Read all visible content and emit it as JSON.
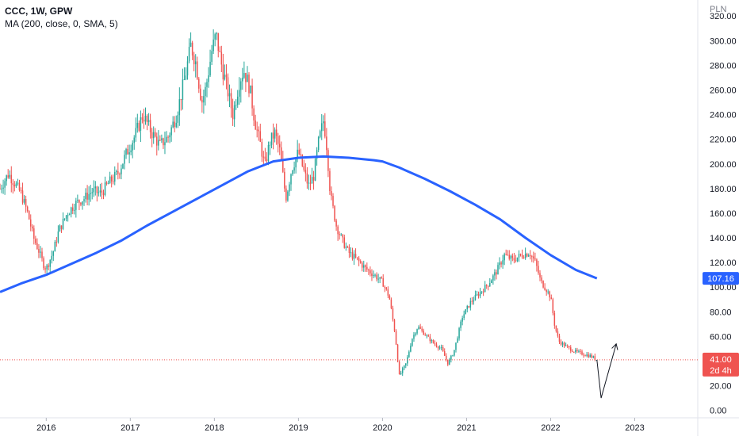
{
  "legend": {
    "symbol_line": "CCC, 1W, GPW",
    "indicator_line": "MA (200, close, 0, SMA, 5)"
  },
  "chart_data": {
    "type": "candlestick",
    "currency_label": "PLN",
    "y_ticks": [
      "0.00",
      "20.00",
      "40.00",
      "60.00",
      "80.00",
      "100.00",
      "120.00",
      "140.00",
      "160.00",
      "180.00",
      "200.00",
      "220.00",
      "240.00",
      "260.00",
      "280.00",
      "300.00",
      "320.00"
    ],
    "y_tick_values": [
      0,
      20,
      40,
      60,
      80,
      100,
      120,
      140,
      160,
      180,
      200,
      220,
      240,
      260,
      280,
      300,
      320
    ],
    "x_ticks": [
      "2016",
      "2017",
      "2018",
      "2019",
      "2020",
      "2021",
      "2022",
      "2023"
    ],
    "x_tick_values": [
      2016,
      2017,
      2018,
      2019,
      2020,
      2021,
      2022,
      2023
    ],
    "ylim": [
      -6,
      333
    ],
    "xlim": [
      2015.45,
      2023.75
    ],
    "price_path": [
      [
        2015.45,
        180
      ],
      [
        2015.55,
        192
      ],
      [
        2015.62,
        185
      ],
      [
        2015.7,
        176
      ],
      [
        2015.78,
        160
      ],
      [
        2015.85,
        140
      ],
      [
        2015.92,
        128
      ],
      [
        2015.97,
        118
      ],
      [
        2016.0,
        115
      ],
      [
        2016.08,
        128
      ],
      [
        2016.15,
        146
      ],
      [
        2016.25,
        160
      ],
      [
        2016.35,
        168
      ],
      [
        2016.45,
        172
      ],
      [
        2016.55,
        178
      ],
      [
        2016.65,
        176
      ],
      [
        2016.75,
        185
      ],
      [
        2016.85,
        192
      ],
      [
        2016.95,
        208
      ],
      [
        2017.05,
        222
      ],
      [
        2017.15,
        240
      ],
      [
        2017.25,
        226
      ],
      [
        2017.35,
        215
      ],
      [
        2017.45,
        222
      ],
      [
        2017.55,
        240
      ],
      [
        2017.65,
        270
      ],
      [
        2017.72,
        296
      ],
      [
        2017.78,
        282
      ],
      [
        2017.85,
        250
      ],
      [
        2017.9,
        262
      ],
      [
        2017.97,
        292
      ],
      [
        2018.02,
        305
      ],
      [
        2018.08,
        282
      ],
      [
        2018.15,
        262
      ],
      [
        2018.22,
        240
      ],
      [
        2018.3,
        268
      ],
      [
        2018.35,
        276
      ],
      [
        2018.42,
        262
      ],
      [
        2018.48,
        235
      ],
      [
        2018.55,
        215
      ],
      [
        2018.6,
        198
      ],
      [
        2018.66,
        218
      ],
      [
        2018.72,
        225
      ],
      [
        2018.78,
        210
      ],
      [
        2018.85,
        172
      ],
      [
        2018.92,
        196
      ],
      [
        2019.0,
        210
      ],
      [
        2019.06,
        195
      ],
      [
        2019.12,
        182
      ],
      [
        2019.18,
        190
      ],
      [
        2019.24,
        218
      ],
      [
        2019.3,
        236
      ],
      [
        2019.34,
        212
      ],
      [
        2019.38,
        175
      ],
      [
        2019.45,
        150
      ],
      [
        2019.52,
        138
      ],
      [
        2019.6,
        128
      ],
      [
        2019.7,
        122
      ],
      [
        2019.8,
        115
      ],
      [
        2019.9,
        110
      ],
      [
        2020.0,
        104
      ],
      [
        2020.08,
        92
      ],
      [
        2020.15,
        62
      ],
      [
        2020.2,
        28
      ],
      [
        2020.28,
        38
      ],
      [
        2020.35,
        58
      ],
      [
        2020.42,
        68
      ],
      [
        2020.5,
        62
      ],
      [
        2020.6,
        55
      ],
      [
        2020.7,
        50
      ],
      [
        2020.78,
        38
      ],
      [
        2020.85,
        48
      ],
      [
        2020.95,
        76
      ],
      [
        2021.05,
        88
      ],
      [
        2021.15,
        95
      ],
      [
        2021.25,
        102
      ],
      [
        2021.35,
        112
      ],
      [
        2021.45,
        126
      ],
      [
        2021.55,
        122
      ],
      [
        2021.65,
        126
      ],
      [
        2021.75,
        128
      ],
      [
        2021.82,
        120
      ],
      [
        2021.88,
        105
      ],
      [
        2021.95,
        98
      ],
      [
        2022.0,
        92
      ],
      [
        2022.05,
        68
      ],
      [
        2022.1,
        56
      ],
      [
        2022.18,
        52
      ],
      [
        2022.28,
        48
      ],
      [
        2022.38,
        46
      ],
      [
        2022.48,
        44
      ],
      [
        2022.55,
        41
      ]
    ],
    "current_price": 41.0,
    "current_price_label": "41.00",
    "countdown_label": "2d 4h",
    "ma_label_value": "107.16",
    "ma_line": [
      [
        2015.45,
        96
      ],
      [
        2015.7,
        103
      ],
      [
        2016.0,
        110
      ],
      [
        2016.3,
        119
      ],
      [
        2016.6,
        128
      ],
      [
        2016.9,
        138
      ],
      [
        2017.2,
        150
      ],
      [
        2017.5,
        161
      ],
      [
        2017.8,
        172
      ],
      [
        2018.1,
        183
      ],
      [
        2018.4,
        194
      ],
      [
        2018.7,
        202
      ],
      [
        2019.0,
        205
      ],
      [
        2019.3,
        206
      ],
      [
        2019.6,
        205
      ],
      [
        2019.9,
        203
      ],
      [
        2020.0,
        202
      ],
      [
        2020.2,
        197
      ],
      [
        2020.5,
        188
      ],
      [
        2020.8,
        178
      ],
      [
        2021.1,
        167
      ],
      [
        2021.4,
        155
      ],
      [
        2021.7,
        140
      ],
      [
        2022.0,
        126
      ],
      [
        2022.3,
        114
      ],
      [
        2022.55,
        107.16
      ]
    ],
    "projection_arrow": [
      [
        2022.55,
        41
      ],
      [
        2022.6,
        10
      ],
      [
        2022.78,
        54
      ]
    ],
    "colors": {
      "up": "#26a69a",
      "down": "#ef5350",
      "ma": "#2962ff",
      "price_line": "#ef5350",
      "arrow": "#131722",
      "axis_text": "#131722"
    }
  }
}
